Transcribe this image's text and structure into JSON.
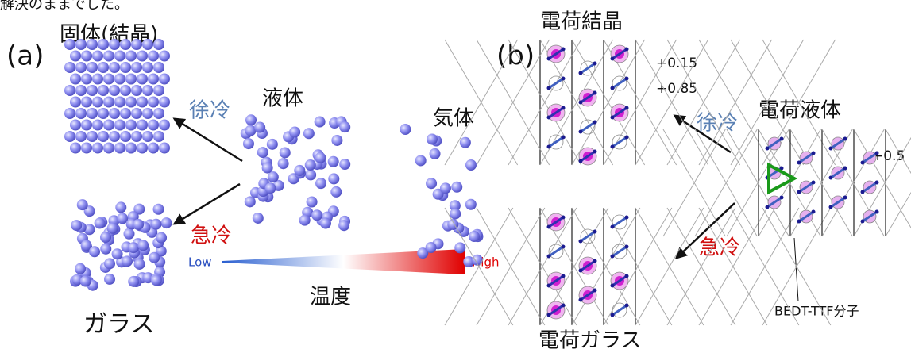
{
  "header": {
    "text": "解決のままでした。"
  },
  "panel_a": {
    "label": "(a)",
    "solid": "固体(結晶)",
    "liquid": "液体",
    "gas": "気体",
    "slow_cool": "徐冷",
    "quench": "急冷",
    "glass": "ガラス",
    "temperature": {
      "low": "Low",
      "high": "High",
      "label": "温度"
    }
  },
  "panel_b": {
    "label": "(b)",
    "charge_crystal": "電荷結晶",
    "charge_high": "+0.85",
    "charge_low": "+0.15",
    "charge_liquid": "電荷液体",
    "charge_half": "+0.5",
    "slow_cool": "徐冷",
    "quench": "急冷",
    "charge_glass": "電荷ガラス",
    "molecule": "BEDT-TTF分子"
  }
}
